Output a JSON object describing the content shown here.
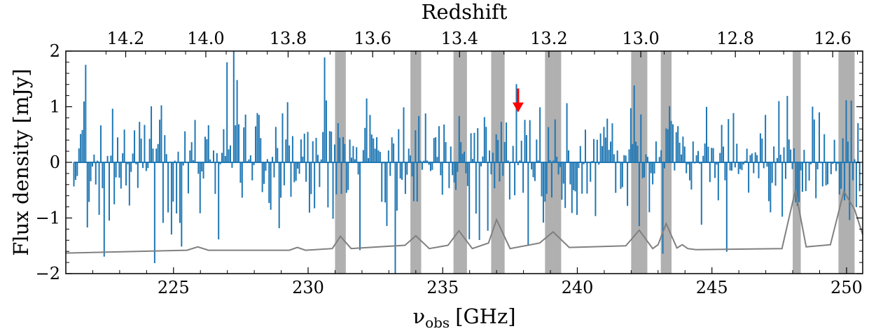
{
  "chart_data": {
    "type": "bar",
    "xlabel_main": "ν",
    "xlabel_sub": "obs",
    "xlabel_unit": "[GHz]",
    "ylabel": "Flux density [mJy]",
    "top_xlabel": "Redshift",
    "xlim": [
      221.0,
      250.6
    ],
    "ylim": [
      -2,
      2
    ],
    "x_ticks": [
      225,
      230,
      235,
      240,
      245,
      250
    ],
    "y_ticks": [
      -2,
      -1,
      0,
      1,
      2
    ],
    "y_tick_labels": [
      "−2",
      "−1",
      "0",
      "1",
      "2"
    ],
    "top_ticks": [
      14.2,
      14.0,
      13.8,
      13.6,
      13.4,
      13.2,
      13.0,
      12.8,
      12.6
    ],
    "top_tick_labels": [
      "14.2",
      "14.0",
      "13.8",
      "13.6",
      "13.4",
      "13.2",
      "13.0",
      "12.8",
      "12.6"
    ],
    "redshift_rest_freq_ghz": 3393.006,
    "masked_ranges_ghz": [
      [
        231.0,
        231.4
      ],
      [
        233.8,
        234.2
      ],
      [
        235.4,
        235.9
      ],
      [
        236.8,
        237.3
      ],
      [
        238.8,
        239.4
      ],
      [
        242.0,
        242.6
      ],
      [
        243.1,
        243.5
      ],
      [
        248.0,
        248.3
      ],
      [
        249.7,
        250.3
      ]
    ],
    "marker": {
      "x": 237.8,
      "y": 0.9,
      "color": "#ff0000"
    },
    "spectrum": {
      "color": "#1f77b4",
      "channel_width_ghz": 0.0625,
      "x_start": 221.3,
      "x_end": 250.5,
      "noise_mjy": 0.55,
      "seed": 20231
    },
    "noise_curve": {
      "color": "#808080",
      "x": [
        221.0,
        225.5,
        225.9,
        226.3,
        229.3,
        229.6,
        229.9,
        230.9,
        231.2,
        231.6,
        233.6,
        234.0,
        234.5,
        235.2,
        235.6,
        236.1,
        236.7,
        237.0,
        237.5,
        238.6,
        239.1,
        239.7,
        241.8,
        242.3,
        242.8,
        243.0,
        243.3,
        243.7,
        243.9,
        244.1,
        244.4,
        247.6,
        248.1,
        248.5,
        249.4,
        249.9,
        250.3,
        250.6
      ],
      "y": [
        -1.63,
        -1.58,
        -1.52,
        -1.58,
        -1.58,
        -1.53,
        -1.58,
        -1.55,
        -1.33,
        -1.55,
        -1.49,
        -1.32,
        -1.55,
        -1.49,
        -1.23,
        -1.55,
        -1.45,
        -1.03,
        -1.55,
        -1.45,
        -1.25,
        -1.53,
        -1.5,
        -1.22,
        -1.55,
        -1.48,
        -1.1,
        -1.54,
        -1.48,
        -1.55,
        -1.57,
        -1.55,
        -0.5,
        -1.52,
        -1.48,
        -0.52,
        -0.85,
        -1.3
      ]
    }
  }
}
